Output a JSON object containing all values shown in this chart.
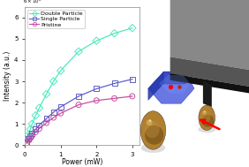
{
  "xlabel": "Power (mW)",
  "ylabel": "Intensity (a.u.)",
  "xlim": [
    0,
    3.2
  ],
  "ylim": [
    0,
    6.5
  ],
  "yticks": [
    0,
    1,
    2,
    3,
    4,
    5,
    6
  ],
  "xticks": [
    0,
    1,
    2,
    3
  ],
  "series": [
    {
      "label": "Double Particle",
      "color": "#50e8c0",
      "marker": "D",
      "x": [
        0.05,
        0.1,
        0.15,
        0.2,
        0.3,
        0.4,
        0.6,
        0.8,
        1.0,
        1.5,
        2.0,
        2.5,
        3.0
      ],
      "y": [
        0.25,
        0.5,
        0.75,
        1.0,
        1.4,
        1.75,
        2.4,
        3.0,
        3.5,
        4.4,
        4.9,
        5.25,
        5.5
      ]
    },
    {
      "label": "Single Particle",
      "color": "#6060c8",
      "marker": "s",
      "x": [
        0.05,
        0.1,
        0.15,
        0.2,
        0.3,
        0.4,
        0.6,
        0.8,
        1.0,
        1.5,
        2.0,
        2.5,
        3.0
      ],
      "y": [
        0.15,
        0.3,
        0.42,
        0.55,
        0.75,
        0.95,
        1.25,
        1.55,
        1.8,
        2.3,
        2.65,
        2.9,
        3.1
      ]
    },
    {
      "label": "Pristine",
      "color": "#c850a0",
      "marker": "o",
      "x": [
        0.05,
        0.1,
        0.15,
        0.2,
        0.3,
        0.4,
        0.6,
        0.8,
        1.0,
        1.5,
        2.0,
        2.5,
        3.0
      ],
      "y": [
        0.1,
        0.22,
        0.33,
        0.44,
        0.62,
        0.78,
        1.05,
        1.3,
        1.5,
        1.9,
        2.1,
        2.2,
        2.3
      ]
    }
  ],
  "bg_color": "#f0f0f0",
  "legend_fontsize": 4.5,
  "axis_fontsize": 5.5,
  "tick_fontsize": 5,
  "marker_size": 3.5,
  "linewidth": 0.9,
  "scene_bg": "#d8d8d0",
  "slab_top_color": "#909090",
  "slab_side_color": "#606060",
  "slab_bottom_color": "#202020",
  "hbn_top_color": "#5566ee",
  "hbn_side_color": "#2233aa",
  "gold_color": "#b08030",
  "gold_light": "#e0c060",
  "gold_dark": "#604010"
}
